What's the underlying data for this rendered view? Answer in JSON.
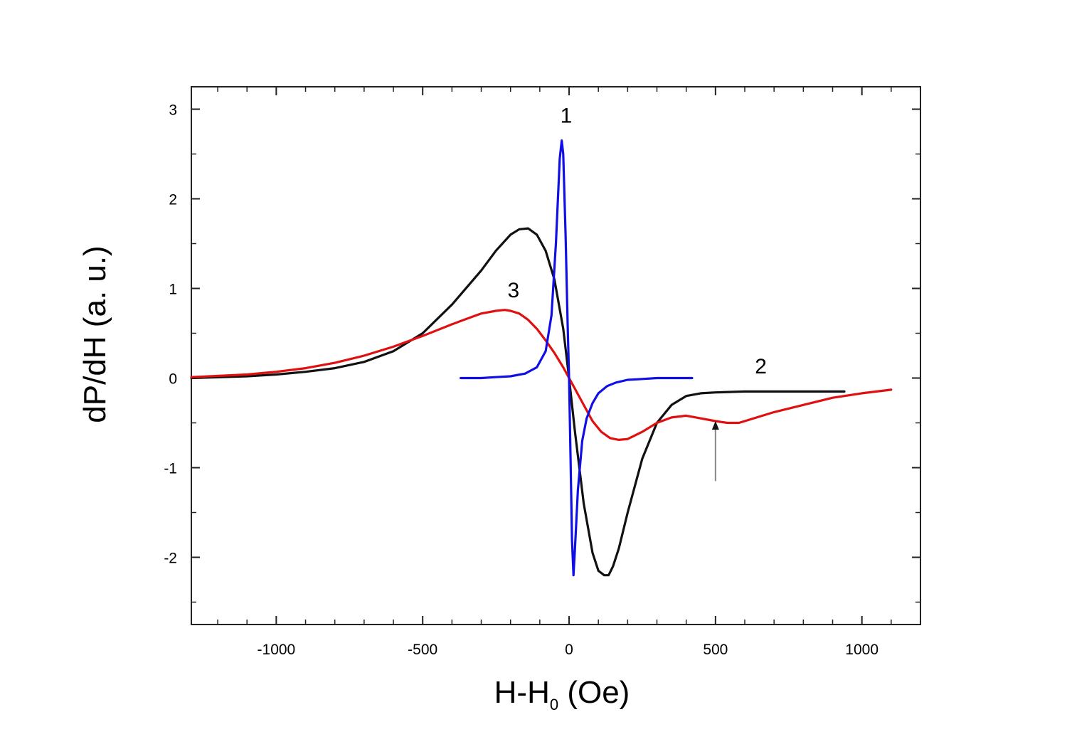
{
  "chart_data": {
    "type": "line",
    "title": "",
    "xlabel_main": "H-H",
    "xlabel_sub": "0",
    "xlabel_unit": " (Oe)",
    "ylabel": "dP/dH (a. u.)",
    "xlim": [
      -1290,
      1200
    ],
    "ylim": [
      -2.75,
      3.25
    ],
    "xticks": [
      -1000,
      -500,
      0,
      500,
      1000
    ],
    "xtick_labels": [
      "-1000",
      "-500",
      "0",
      "500",
      "1000"
    ],
    "yticks": [
      -2,
      -1,
      0,
      1,
      2,
      3
    ],
    "ytick_labels": [
      "-2",
      "-1",
      "0",
      "1",
      "2",
      "3"
    ],
    "grid": false,
    "series": [
      {
        "name": "1",
        "color": "#1010e6",
        "x": [
          -370,
          -300,
          -250,
          -200,
          -150,
          -110,
          -80,
          -60,
          -45,
          -32,
          -25,
          -20,
          -12,
          -5,
          0,
          5,
          10,
          15,
          20,
          30,
          45,
          60,
          80,
          100,
          130,
          160,
          200,
          250,
          300,
          350,
          420
        ],
        "y": [
          0.0,
          0.0,
          0.01,
          0.02,
          0.05,
          0.12,
          0.3,
          0.7,
          1.5,
          2.45,
          2.65,
          2.5,
          1.6,
          0.6,
          0.0,
          -0.9,
          -1.8,
          -2.2,
          -1.9,
          -1.25,
          -0.7,
          -0.45,
          -0.28,
          -0.17,
          -0.09,
          -0.05,
          -0.02,
          -0.01,
          0.0,
          0.0,
          0.0
        ]
      },
      {
        "name": "2",
        "color": "#111111",
        "x": [
          -1290,
          -1100,
          -1000,
          -900,
          -800,
          -700,
          -600,
          -500,
          -400,
          -300,
          -250,
          -200,
          -170,
          -140,
          -110,
          -80,
          -50,
          -20,
          0,
          20,
          50,
          80,
          100,
          120,
          135,
          150,
          170,
          200,
          250,
          300,
          350,
          400,
          450,
          500,
          600,
          700,
          800,
          900,
          940
        ],
        "y": [
          0.0,
          0.02,
          0.04,
          0.07,
          0.11,
          0.18,
          0.3,
          0.5,
          0.82,
          1.2,
          1.42,
          1.6,
          1.66,
          1.67,
          1.6,
          1.42,
          1.1,
          0.55,
          0.0,
          -0.6,
          -1.4,
          -1.95,
          -2.15,
          -2.2,
          -2.2,
          -2.1,
          -1.9,
          -1.5,
          -0.9,
          -0.5,
          -0.3,
          -0.2,
          -0.17,
          -0.16,
          -0.15,
          -0.15,
          -0.15,
          -0.15,
          -0.15
        ]
      },
      {
        "name": "3",
        "color": "#e01010",
        "x": [
          -1290,
          -1100,
          -1000,
          -900,
          -800,
          -700,
          -600,
          -500,
          -400,
          -350,
          -300,
          -250,
          -220,
          -200,
          -170,
          -140,
          -110,
          -80,
          -50,
          -20,
          0,
          20,
          50,
          80,
          110,
          140,
          170,
          200,
          250,
          300,
          350,
          400,
          450,
          500,
          540,
          580,
          620,
          700,
          800,
          900,
          1000,
          1100
        ],
        "y": [
          0.01,
          0.04,
          0.07,
          0.11,
          0.17,
          0.25,
          0.35,
          0.47,
          0.6,
          0.66,
          0.72,
          0.75,
          0.76,
          0.75,
          0.72,
          0.65,
          0.55,
          0.42,
          0.28,
          0.12,
          0.0,
          -0.12,
          -0.3,
          -0.48,
          -0.6,
          -0.67,
          -0.69,
          -0.68,
          -0.6,
          -0.5,
          -0.44,
          -0.42,
          -0.45,
          -0.48,
          -0.5,
          -0.5,
          -0.46,
          -0.38,
          -0.3,
          -0.22,
          -0.17,
          -0.13
        ]
      }
    ],
    "annotations": [
      {
        "text": "1",
        "x": -10,
        "y": 2.85
      },
      {
        "text": "2",
        "x": 655,
        "y": 0.05
      },
      {
        "text": "3",
        "x": -190,
        "y": 0.9
      }
    ],
    "arrow": {
      "x": 500,
      "y_from": -1.15,
      "y_to": -0.48
    }
  }
}
